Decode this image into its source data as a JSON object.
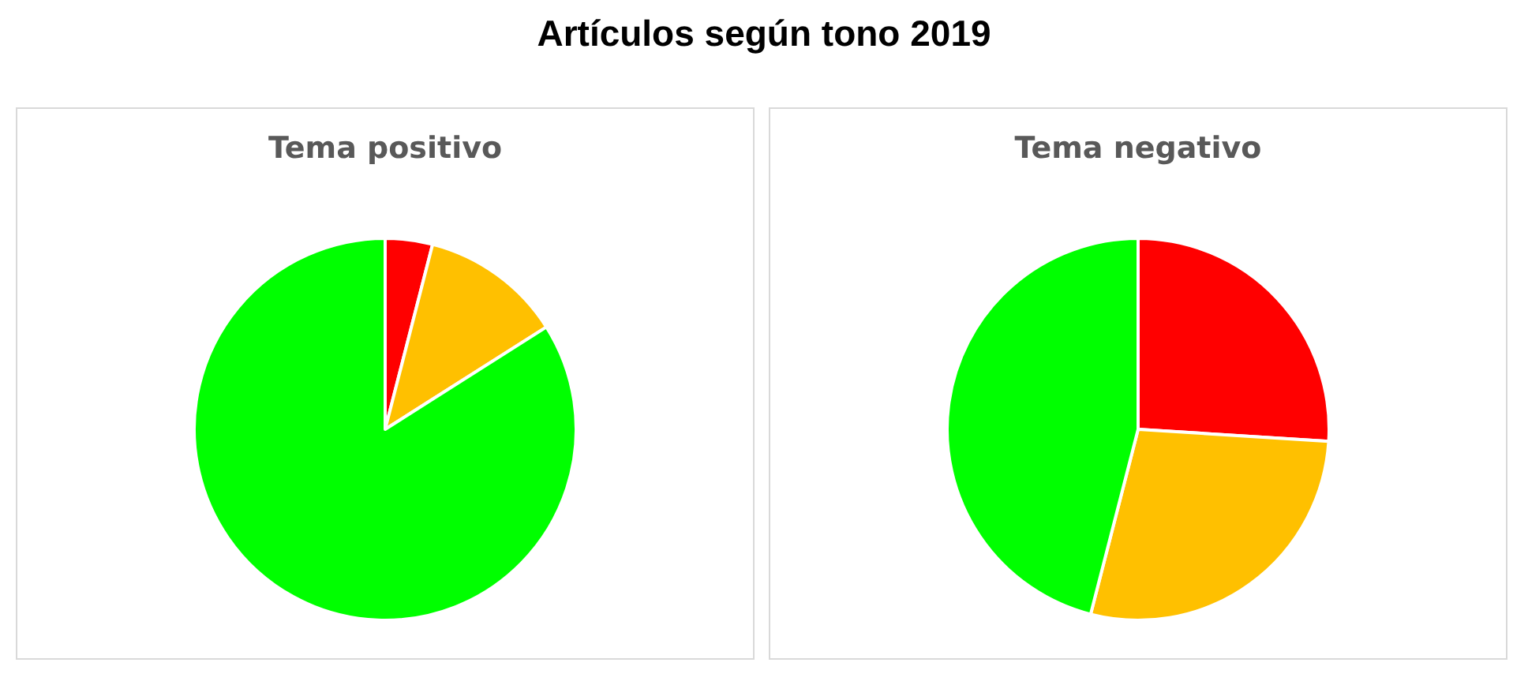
{
  "chart_data": [
    {
      "type": "other",
      "title": "Artículos según tono 2019"
    },
    {
      "type": "pie",
      "title": "Tema positivo",
      "categories": [
        null,
        null,
        null
      ],
      "values": [
        4,
        12,
        84
      ],
      "colors": [
        "#ff0000",
        "#ffc000",
        "#00ff00"
      ]
    },
    {
      "type": "pie",
      "title": "Tema negativo",
      "categories": [
        null,
        null,
        null
      ],
      "values": [
        26,
        28,
        46
      ],
      "colors": [
        "#ff0000",
        "#ffc000",
        "#00ff00"
      ]
    }
  ]
}
